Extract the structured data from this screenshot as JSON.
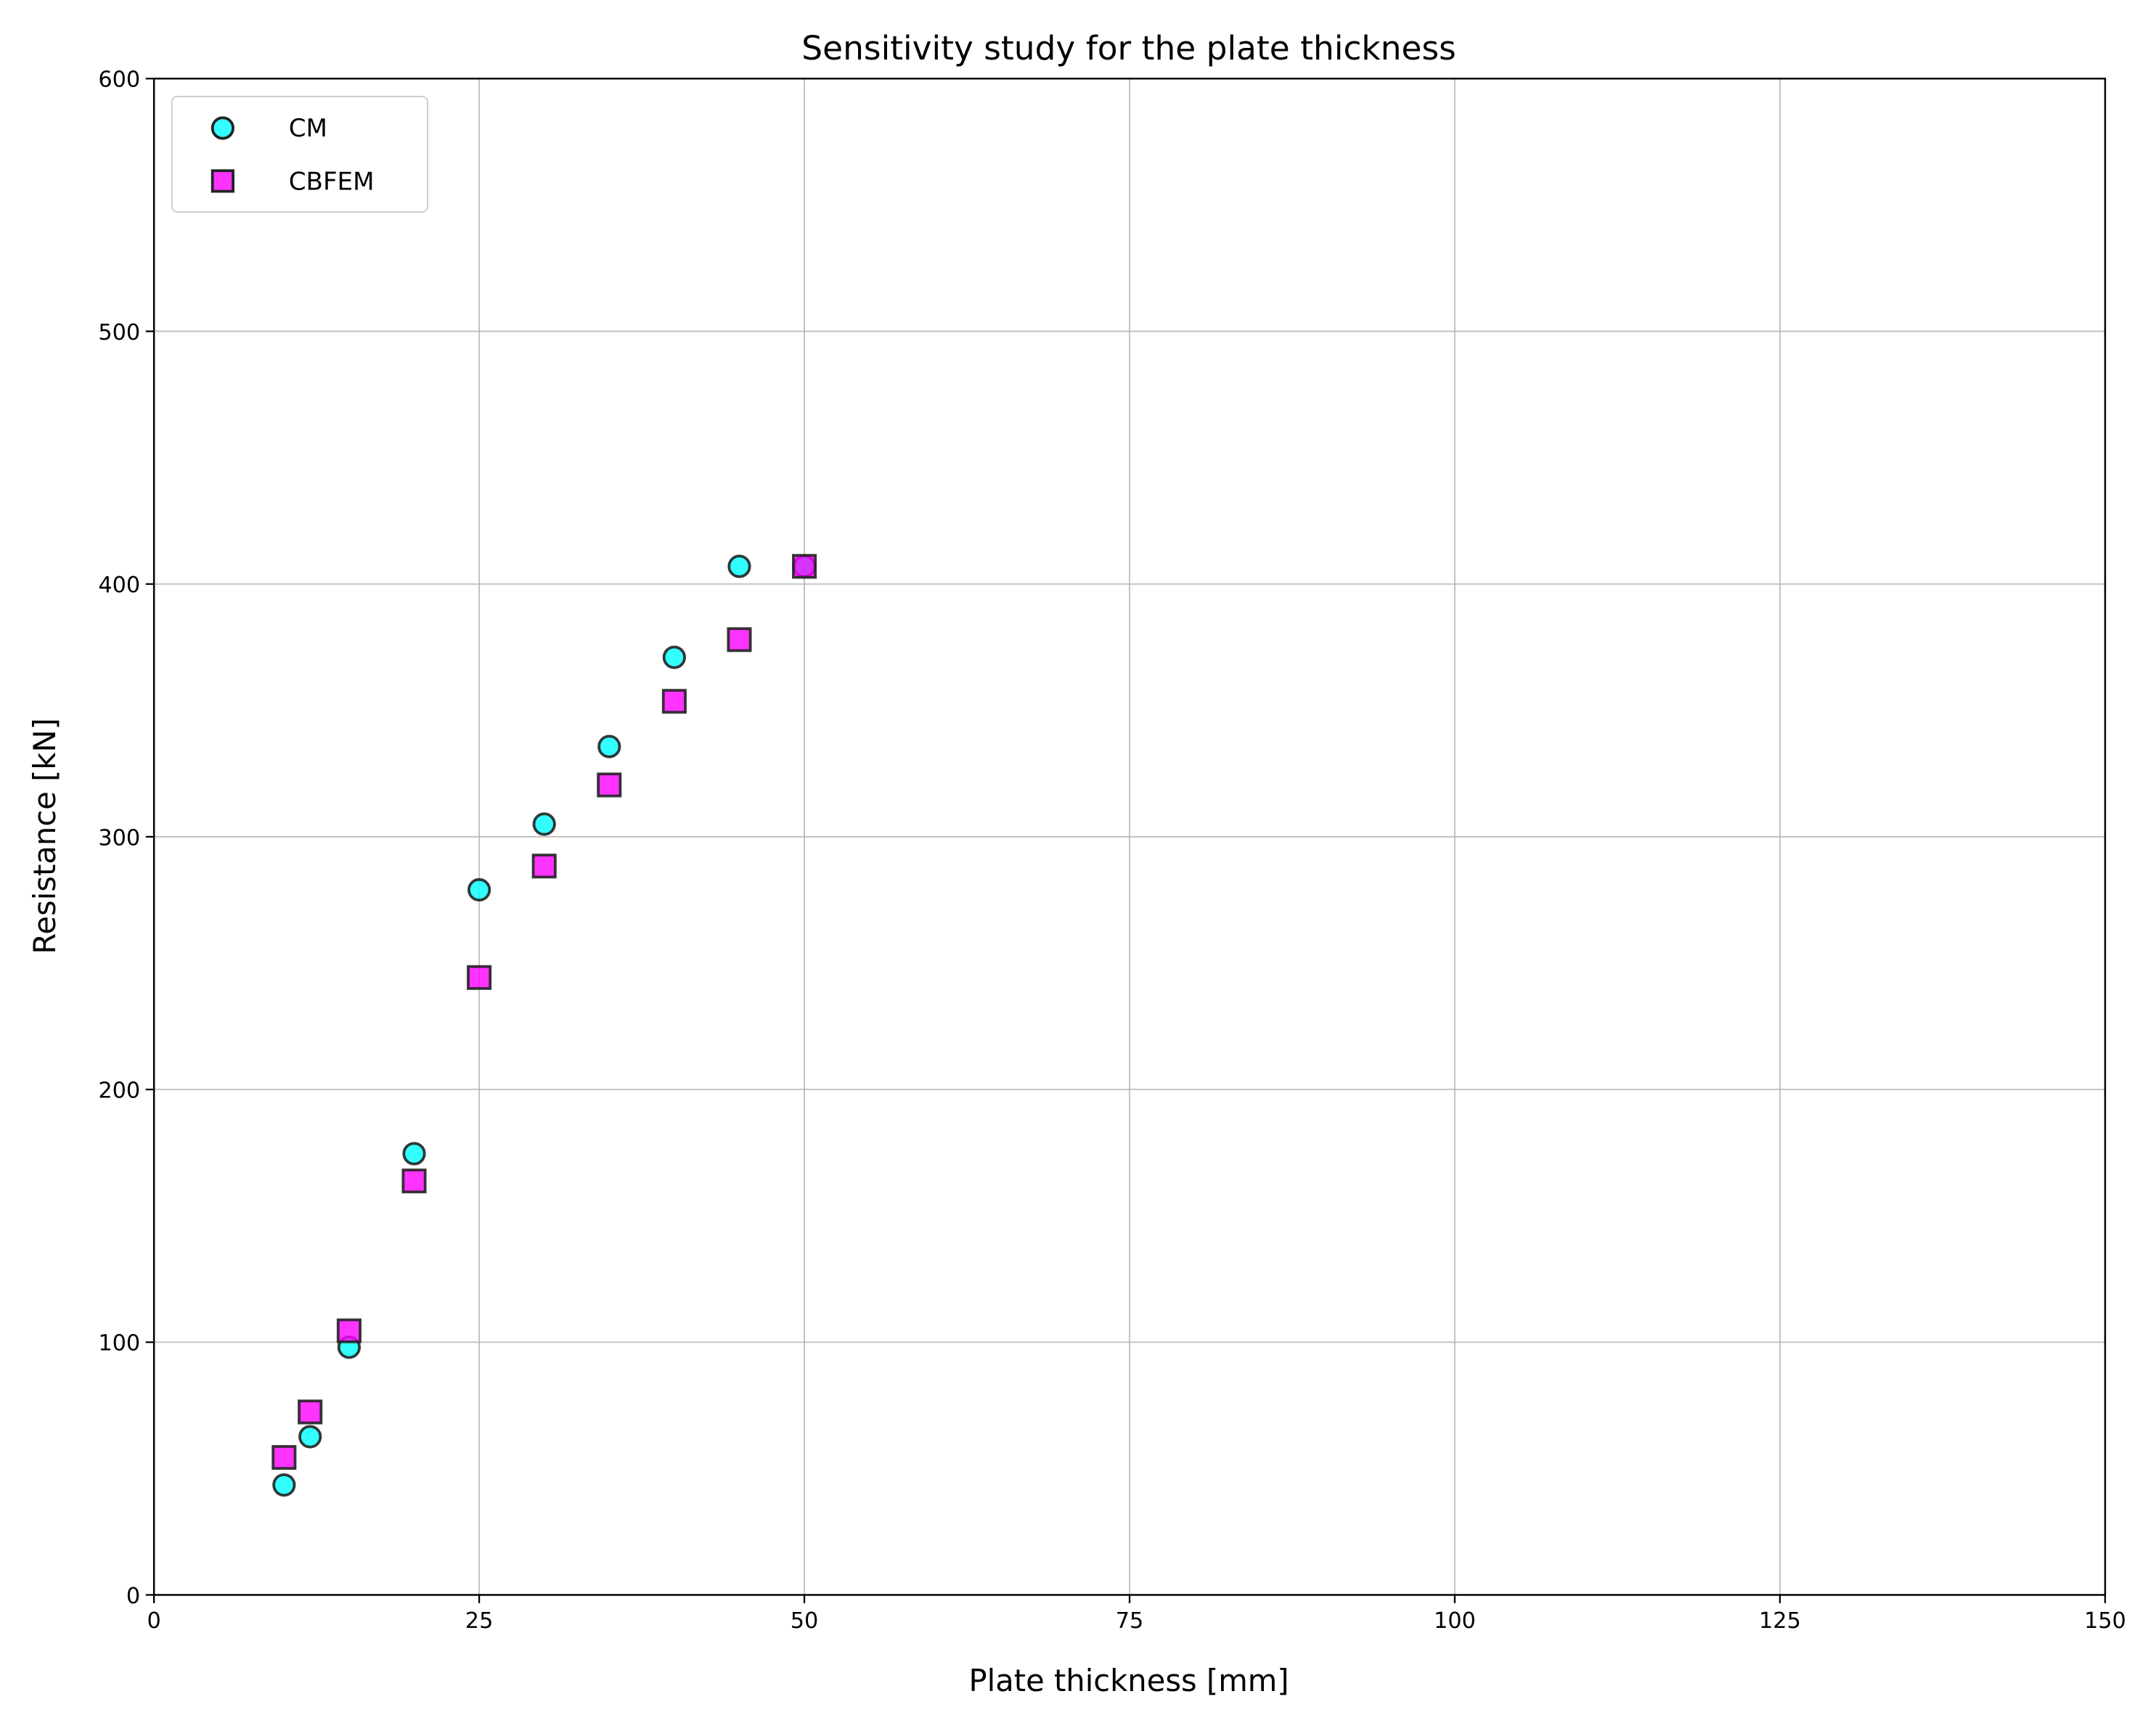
{
  "chart_data": {
    "type": "scatter",
    "title": "Sensitivity study for the plate thickness",
    "xlabel": "Plate thickness [mm]",
    "ylabel": "Resistance [kN]",
    "xlim": [
      0,
      150
    ],
    "ylim": [
      0,
      600
    ],
    "xticks": [
      0,
      25,
      50,
      75,
      100,
      125,
      150
    ],
    "yticks": [
      0,
      100,
      200,
      300,
      400,
      500,
      600
    ],
    "grid": true,
    "legend_position": "top-left",
    "series": [
      {
        "name": "CM",
        "marker": "circle",
        "color": "#00ffff",
        "x": [
          10,
          12,
          15,
          20,
          25,
          30,
          35,
          40,
          45,
          50
        ],
        "y": [
          43.5,
          62.6,
          98,
          174.6,
          279,
          305,
          335.7,
          371,
          407,
          407
        ]
      },
      {
        "name": "CBFEM",
        "marker": "square",
        "color": "#ff00ff",
        "x": [
          10,
          12,
          15,
          20,
          25,
          30,
          35,
          40,
          45,
          50
        ],
        "y": [
          54.4,
          72.4,
          104.5,
          163.8,
          244.3,
          288.4,
          320.5,
          353.6,
          378,
          407
        ]
      }
    ]
  }
}
